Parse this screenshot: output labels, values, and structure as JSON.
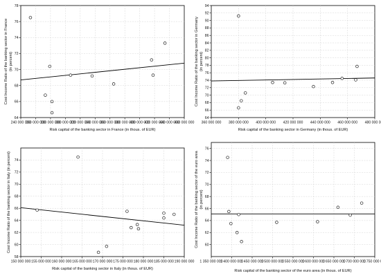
{
  "chart_data": [
    {
      "type": "scatter",
      "xlabel": "Risk capital of the banking sector in France (in thous. of EUR)",
      "ylabel": [
        "Cost Income Ratio of the banking sector in France",
        "(in percent)"
      ],
      "xticks": [
        240000000,
        260000000,
        280000000,
        300000000,
        320000000,
        340000000,
        360000000,
        380000000,
        400000000,
        420000000,
        440000000,
        460000000
      ],
      "xtick_labels": [
        "240 000 000",
        "260 000 000",
        "280 000 000",
        "300 000 000",
        "320 000 000",
        "340 000 000",
        "360 000 000",
        "380 000 000",
        "400 000 000",
        "420 000 000",
        "440 000 000",
        "460 000 000"
      ],
      "yticks": [
        64,
        66,
        68,
        70,
        72,
        74,
        76,
        78
      ],
      "ytick_labels": [
        "64",
        "66",
        "68",
        "70",
        "72",
        "74",
        "76",
        "78"
      ],
      "xlim": [
        240000000,
        460000000
      ],
      "ylim": [
        64,
        78
      ],
      "grid": true,
      "points": [
        {
          "x": 253000000,
          "y": 76.5
        },
        {
          "x": 273000000,
          "y": 66.8
        },
        {
          "x": 279000000,
          "y": 70.4
        },
        {
          "x": 282000000,
          "y": 66.0
        },
        {
          "x": 282000000,
          "y": 64.6
        },
        {
          "x": 307000000,
          "y": 69.3
        },
        {
          "x": 336000000,
          "y": 69.2
        },
        {
          "x": 365000000,
          "y": 68.2
        },
        {
          "x": 416000000,
          "y": 71.2
        },
        {
          "x": 418000000,
          "y": 69.3
        },
        {
          "x": 434000000,
          "y": 73.3
        }
      ],
      "fit": {
        "x": [
          240000000,
          460000000
        ],
        "y": [
          68.7,
          70.8
        ]
      }
    },
    {
      "type": "scatter",
      "xlabel": "Risk capital of the banking sector in Germany (in thous. of EUR)",
      "ylabel": [
        "Cost Income Ratio of the banking sector in Germany",
        "(in percent)"
      ],
      "xticks": [
        360000000,
        380000000,
        400000000,
        420000000,
        440000000,
        460000000,
        480000000
      ],
      "xtick_labels": [
        "360 000 000",
        "380 000 000",
        "400 000 000",
        "420 000 000",
        "440 000 000",
        "460 000 000",
        "480 000 000"
      ],
      "yticks": [
        64,
        66,
        68,
        70,
        72,
        74,
        76,
        78,
        80,
        82,
        84,
        86,
        88,
        90,
        92,
        94
      ],
      "ytick_labels": [
        "64",
        "66",
        "68",
        "70",
        "72",
        "74",
        "76",
        "78",
        "80",
        "82",
        "84",
        "86",
        "88",
        "90",
        "92",
        "94"
      ],
      "xlim": [
        360000000,
        480000000
      ],
      "ylim": [
        64,
        94
      ],
      "grid": true,
      "points": [
        {
          "x": 380000000,
          "y": 91.2
        },
        {
          "x": 380000000,
          "y": 66.6
        },
        {
          "x": 382000000,
          "y": 68.5
        },
        {
          "x": 385000000,
          "y": 70.6
        },
        {
          "x": 405000000,
          "y": 73.4
        },
        {
          "x": 414000000,
          "y": 73.3
        },
        {
          "x": 435000000,
          "y": 72.3
        },
        {
          "x": 449000000,
          "y": 73.4
        },
        {
          "x": 456000000,
          "y": 74.5
        },
        {
          "x": 466000000,
          "y": 74.1
        },
        {
          "x": 467000000,
          "y": 77.7
        }
      ],
      "fit": {
        "x": [
          360000000,
          480000000
        ],
        "y": [
          73.8,
          74.6
        ]
      }
    },
    {
      "type": "scatter",
      "xlabel": "Risk capital of the banking sector in Italy (in thous. of EUR)",
      "ylabel": [
        "Cost Income Ratio of the banking sector in Italy (in percent)"
      ],
      "xticks": [
        150000000,
        155000000,
        160000000,
        165000000,
        170000000,
        175000000,
        180000000,
        185000000,
        190000000
      ],
      "xtick_labels": [
        "150 000 000",
        "155 000 000",
        "160 000 000",
        "165 000 000",
        "170 000 000",
        "175 000 000",
        "180 000 000",
        "185 000 000",
        "190 000 000"
      ],
      "yticks": [
        58,
        60,
        62,
        64,
        66,
        68,
        70,
        72,
        74
      ],
      "ytick_labels": [
        "58",
        "60",
        "62",
        "64",
        "66",
        "68",
        "70",
        "72",
        "74"
      ],
      "xlim": [
        150000000,
        190000000
      ],
      "ylim": [
        58,
        76
      ],
      "grid": true,
      "points": [
        {
          "x": 154000000,
          "y": 65.7
        },
        {
          "x": 164000000,
          "y": 74.5
        },
        {
          "x": 169000000,
          "y": 58.7
        },
        {
          "x": 171000000,
          "y": 59.7
        },
        {
          "x": 176000000,
          "y": 65.5
        },
        {
          "x": 177000000,
          "y": 62.8
        },
        {
          "x": 178500000,
          "y": 63.3
        },
        {
          "x": 178800000,
          "y": 62.6
        },
        {
          "x": 185000000,
          "y": 65.2
        },
        {
          "x": 185000000,
          "y": 64.4
        },
        {
          "x": 187500000,
          "y": 65.0
        }
      ],
      "fit": {
        "x": [
          150000000,
          190000000
        ],
        "y": [
          66.1,
          63.2
        ]
      }
    },
    {
      "type": "scatter",
      "xlabel": "Risk capital of the banking sector of the euro area (in thous. of EUR)",
      "ylabel": [
        "Cost Income Ratio of the banking sector of the euro area",
        "(in percent)"
      ],
      "xticks": [
        1350000000,
        1400000000,
        1450000000,
        1500000000,
        1550000000,
        1600000000,
        1650000000,
        1700000000,
        1750000000
      ],
      "xtick_labels": [
        "1 350 000 000",
        "1 400 000 000",
        "1 450 000 000",
        "1 500 000 000",
        "1 550 000 000",
        "1 600 000 000",
        "1 650 000 000",
        "1 700 000 000",
        "1 750 000 000"
      ],
      "yticks": [
        60,
        62,
        64,
        66,
        68,
        70,
        72,
        74,
        76
      ],
      "ytick_labels": [
        "60",
        "62",
        "64",
        "66",
        "68",
        "70",
        "72",
        "74",
        "76"
      ],
      "xlim": [
        1350000000,
        1750000000
      ],
      "ylim": [
        58,
        77
      ],
      "grid": true,
      "points": [
        {
          "x": 1390000000,
          "y": 74.5
        },
        {
          "x": 1393000000,
          "y": 65.5
        },
        {
          "x": 1398000000,
          "y": 63.5
        },
        {
          "x": 1413000000,
          "y": 62.0
        },
        {
          "x": 1417000000,
          "y": 65.0
        },
        {
          "x": 1424000000,
          "y": 60.5
        },
        {
          "x": 1510000000,
          "y": 63.7
        },
        {
          "x": 1610000000,
          "y": 63.8
        },
        {
          "x": 1660000000,
          "y": 66.2
        },
        {
          "x": 1690000000,
          "y": 64.9
        },
        {
          "x": 1718000000,
          "y": 66.9
        }
      ],
      "fit": {
        "x": [
          1350000000,
          1750000000
        ],
        "y": [
          65.1,
          65.1
        ]
      }
    }
  ]
}
